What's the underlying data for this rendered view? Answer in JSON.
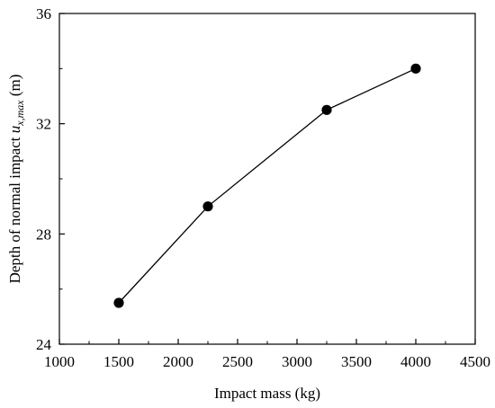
{
  "chart_data": {
    "type": "line",
    "title": "",
    "xlabel": "Impact mass (kg)",
    "ylabel": {
      "prefix": "Depth of normal impact ",
      "symbol": "u",
      "subscript": "x,max",
      "unit": "(m)"
    },
    "xlim": [
      1000,
      4500
    ],
    "ylim": [
      24,
      36
    ],
    "xticks": [
      1000,
      1500,
      2000,
      2500,
      3000,
      3500,
      4000,
      4500
    ],
    "yticks": [
      24,
      28,
      32,
      36
    ],
    "x_minor_step": 250,
    "y_minor_step": 2,
    "grid": false,
    "series": [
      {
        "x": [
          1500,
          2250,
          3250,
          4000
        ],
        "y": [
          25.5,
          29.0,
          32.5,
          34.0
        ],
        "color": "#000000",
        "marker": "circle"
      }
    ]
  }
}
